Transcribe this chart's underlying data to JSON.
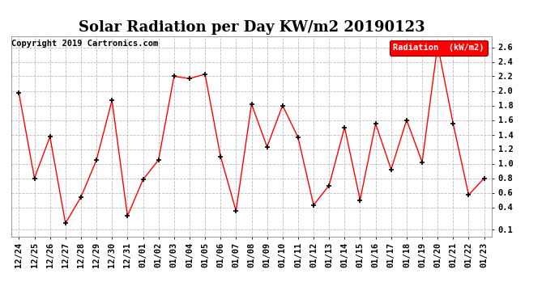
{
  "title": "Solar Radiation per Day KW/m2 20190123",
  "copyright_text": "Copyright 2019 Cartronics.com",
  "legend_label": "Radiation  (kW/m2)",
  "dates": [
    "12/24",
    "12/25",
    "12/26",
    "12/27",
    "12/28",
    "12/29",
    "12/30",
    "12/31",
    "01/01",
    "01/02",
    "01/03",
    "01/04",
    "01/05",
    "01/06",
    "01/07",
    "01/08",
    "01/09",
    "01/10",
    "01/11",
    "01/12",
    "01/13",
    "01/14",
    "01/15",
    "01/16",
    "01/17",
    "01/18",
    "01/19",
    "01/20",
    "01/21",
    "01/22",
    "01/23"
  ],
  "values": [
    1.97,
    0.8,
    1.37,
    0.18,
    0.54,
    1.05,
    1.87,
    0.28,
    0.78,
    1.05,
    2.2,
    2.17,
    2.23,
    1.1,
    0.35,
    1.82,
    1.23,
    1.8,
    1.36,
    0.43,
    0.7,
    1.5,
    0.5,
    1.55,
    0.92,
    1.6,
    1.02,
    2.63,
    1.55,
    0.57,
    0.8
  ],
  "line_color": "red",
  "marker_color": "black",
  "bg_color": "#ffffff",
  "grid_color": "#bbbbbb",
  "ylim_min": 0.0,
  "ylim_max": 2.75,
  "yticks": [
    0.1,
    0.4,
    0.6,
    0.8,
    1.0,
    1.2,
    1.4,
    1.6,
    1.8,
    2.0,
    2.2,
    2.4,
    2.6
  ],
  "ytick_labels": [
    "0.1",
    "0.4",
    "0.6",
    "0.8",
    "1.0",
    "1.2",
    "1.4",
    "1.6",
    "1.8",
    "2.0",
    "2.2",
    "2.4",
    "2.6"
  ],
  "title_fontsize": 13,
  "tick_fontsize": 7.5,
  "copyright_fontsize": 7.5,
  "legend_fontsize": 7.5
}
